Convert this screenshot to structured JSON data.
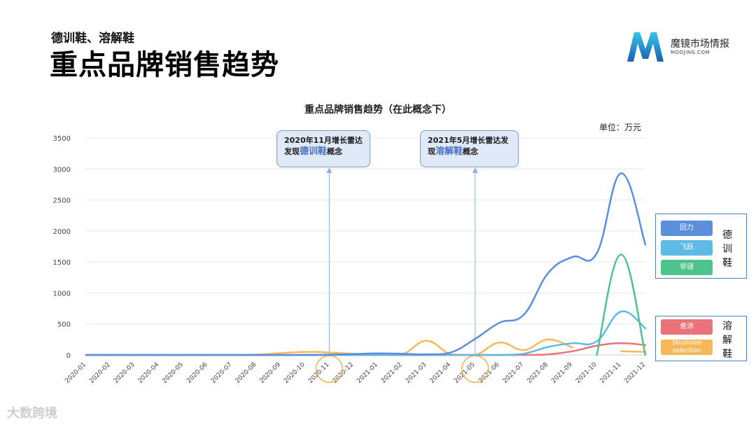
{
  "header": {
    "subtitle": "德训鞋、溶解鞋",
    "title": "重点品牌销售趋势"
  },
  "brand": {
    "name": "魔镜市场情报",
    "sub": "MOOJING.COM"
  },
  "watermark": "大数跨境",
  "callouts": [
    {
      "line1": "2020年11月增长雷达",
      "line2_pre": "发现",
      "line2_hl": "德训鞋",
      "line2_post": "概念",
      "month": "2020-11"
    },
    {
      "line1": "2021年5月增长雷达发",
      "line2_pre": "现",
      "line2_hl": "溶解鞋",
      "line2_post": "概念",
      "month": "2021-05"
    }
  ],
  "legend_groups": [
    {
      "label_chars": [
        "德",
        "训",
        "鞋"
      ],
      "items": [
        "回力",
        "飞跃",
        "非谜"
      ]
    },
    {
      "label_chars": [
        "溶",
        "解",
        "鞋"
      ],
      "items": [
        "舍涂",
        "Studiolee selection"
      ]
    }
  ],
  "colors": {
    "huili": "#5b8fdc",
    "feiyue": "#5fbbe6",
    "feimi": "#4ec48c",
    "shetu": "#e8747a",
    "studiolee": "#f5b95a",
    "callout_line": "#8fb0e0",
    "highlight_circle": "#f0b24a",
    "grid": "#e6e6e6"
  },
  "chart_data": {
    "type": "line",
    "title": "重点品牌销售趋势（在此概念下）",
    "unit_label": "单位：万元",
    "ylim": [
      0,
      3500
    ],
    "y_ticks": [
      0,
      500,
      1000,
      1500,
      2000,
      2500,
      3000,
      3500
    ],
    "grid": true,
    "legend_position": "right",
    "categories": [
      "2020-01",
      "2020-02",
      "2020-03",
      "2020-04",
      "2020-05",
      "2020-06",
      "2020-07",
      "2020-08",
      "2020-09",
      "2020-10",
      "2020-11",
      "2020-12",
      "2021-01",
      "2021-02",
      "2021-03",
      "2021-04",
      "2021-05",
      "2021-06",
      "2021-07",
      "2021-08",
      "2021-09",
      "2021-10",
      "2021-11",
      "2021-12"
    ],
    "series": [
      {
        "name": "回力",
        "color": "#5b8fdc",
        "values": [
          0,
          0,
          0,
          0,
          0,
          0,
          0,
          0,
          0,
          0,
          5,
          15,
          25,
          20,
          10,
          40,
          260,
          520,
          650,
          1320,
          1580,
          1640,
          2930,
          1780
        ]
      },
      {
        "name": "飞跃",
        "color": "#5fbbe6",
        "values": [
          0,
          0,
          0,
          0,
          0,
          0,
          0,
          0,
          0,
          0,
          0,
          0,
          0,
          0,
          0,
          0,
          0,
          0,
          20,
          130,
          190,
          220,
          700,
          430
        ]
      },
      {
        "name": "非谜",
        "color": "#4ec48c",
        "values": [
          null,
          null,
          null,
          null,
          null,
          null,
          null,
          null,
          null,
          null,
          null,
          null,
          null,
          null,
          null,
          null,
          null,
          null,
          null,
          null,
          null,
          0,
          1620,
          0
        ]
      },
      {
        "name": "舍涂",
        "color": "#e8747a",
        "values": [
          0,
          0,
          0,
          0,
          0,
          0,
          0,
          0,
          0,
          0,
          0,
          0,
          0,
          0,
          0,
          0,
          0,
          0,
          0,
          10,
          60,
          150,
          190,
          160
        ]
      },
      {
        "name": "Studiolee selection",
        "color": "#f5b95a",
        "values": [
          0,
          0,
          0,
          0,
          0,
          0,
          0,
          5,
          30,
          50,
          40,
          20,
          10,
          10,
          230,
          10,
          0,
          200,
          80,
          250,
          120,
          null,
          60,
          50
        ]
      }
    ]
  }
}
